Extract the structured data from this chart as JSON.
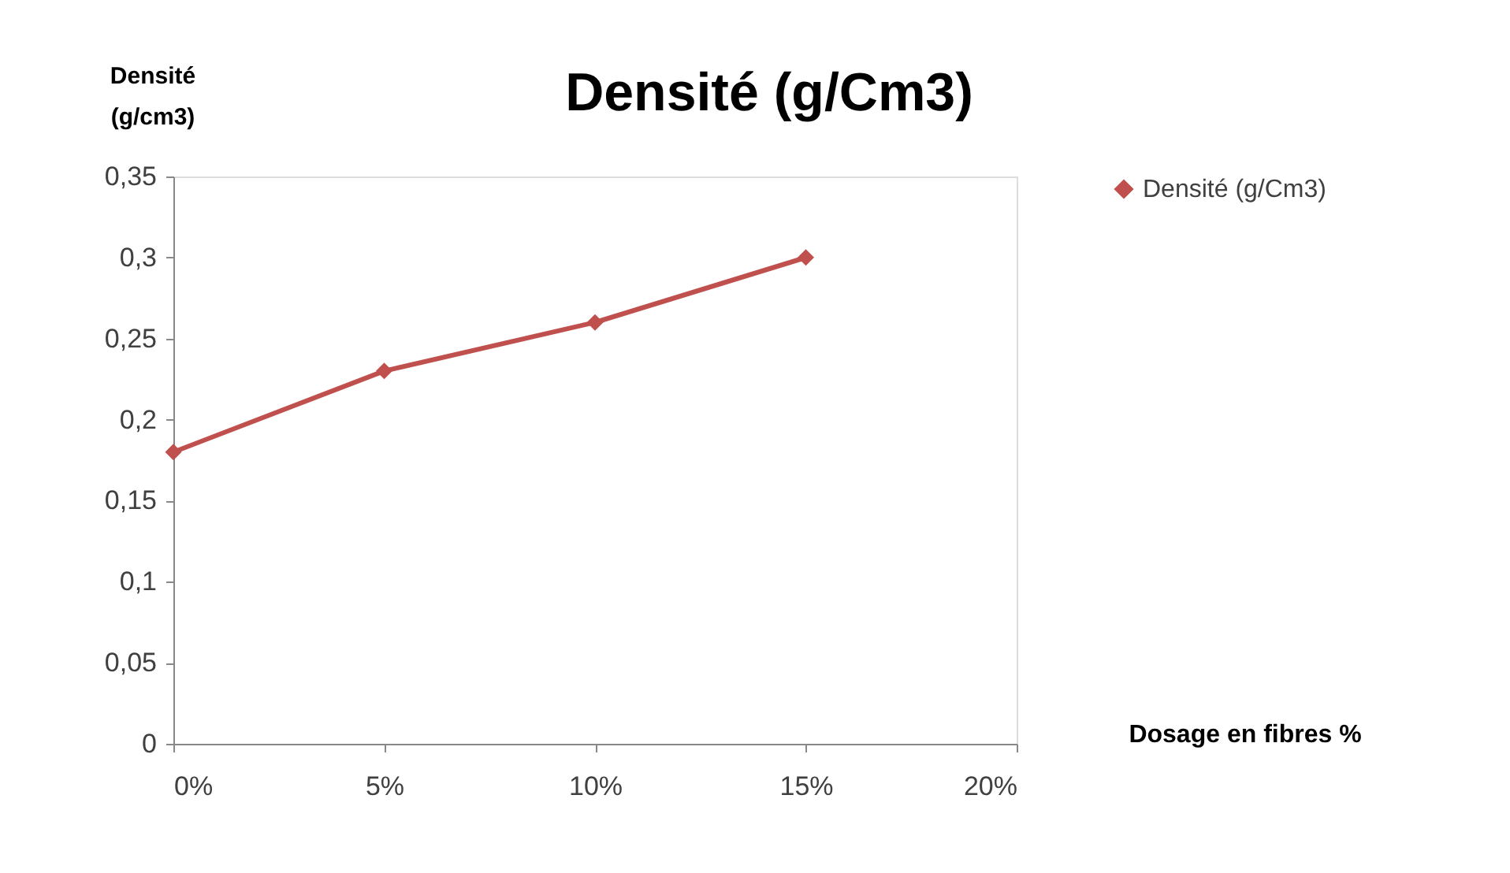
{
  "chart_data": {
    "type": "line",
    "title": "Densité (g/Cm3)",
    "ylabel": "Densité (g/cm3)",
    "xlabel": "Dosage en fibres %",
    "categories": [
      "0%",
      "5%",
      "10%",
      "15%",
      "20%"
    ],
    "series": [
      {
        "name": "Densité (g/Cm3)",
        "color": "#c0504d",
        "values": [
          0.18,
          0.23,
          0.26,
          0.3,
          null
        ]
      }
    ],
    "ylim": [
      0,
      0.35
    ],
    "yticks": [
      0,
      {
        "value": 0.05,
        "label": "0,05"
      },
      {
        "value": 0.1,
        "label": "0,1"
      },
      {
        "value": 0.15,
        "label": "0,15"
      },
      {
        "value": 0.2,
        "label": "0,2"
      },
      {
        "value": 0.25,
        "label": "0,25"
      },
      {
        "value": 0.3,
        "label": "0,3"
      },
      {
        "value": 0.35,
        "label": "0,35"
      }
    ],
    "grid": false,
    "legend": "right",
    "marker": "diamond",
    "line_style": "solid"
  }
}
